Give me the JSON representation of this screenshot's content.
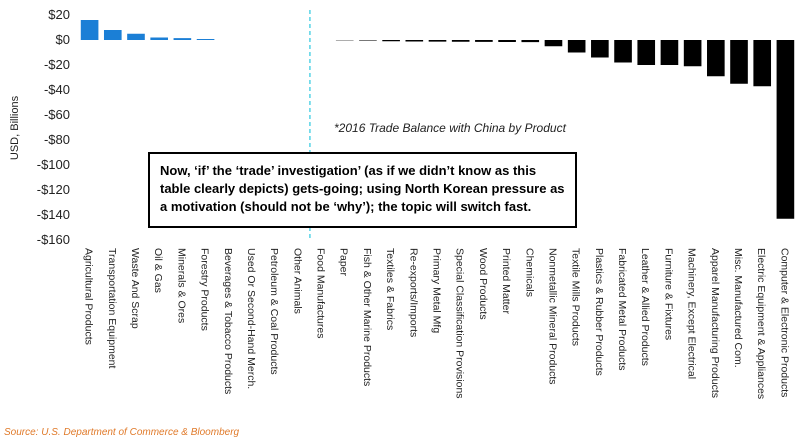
{
  "chart_data": {
    "type": "bar",
    "y_label": "USD, Billions",
    "note": "*2016 Trade Balance with China by Product",
    "annotation": "Now, ‘if’ the ‘trade’ investigation’ (as if we didn’t know as this table clearly depicts) gets-going; using North Korean pressure as a motivation (should not be ‘why’); the topic will switch fast.",
    "source": "Source: U.S. Department of Commerce & Bloomberg",
    "categories": [
      "Agricultural Products",
      "Transportation Equipment",
      "Waste And Scrap",
      "Oil & Gas",
      "Minerals & Ores",
      "Forestry Products",
      "Beverages & Tobacco Products",
      "Used Or Second-Hand Merch.",
      "Petroleum & Coal Products",
      "Other Animals",
      "Food Manufactures",
      "Paper",
      "Fish & Other Marine Products",
      "Textiles & Fabrics",
      "Re-exports/Imports",
      "Primary Metal Mfg",
      "Special Classification Provisions",
      "Wood Products",
      "Printed Matter",
      "Chemicals",
      "Nonmetallic Mineral Products",
      "Textile Mills Products",
      "Plastics & Rubber Products",
      "Fabricated Metal Products",
      "Leather & Allied Products",
      "Furniture & Fixtures",
      "Machinery, Except Electrical",
      "Apparel Manufacturing Products",
      "Misc. Manufactured Com.",
      "Electric Equipment & Appliances",
      "Computer & Electronic Products"
    ],
    "values": [
      16,
      8,
      5,
      2,
      1.5,
      0.8,
      0,
      0,
      0,
      0,
      0,
      -0.5,
      -0.8,
      -1,
      -1.2,
      -1.3,
      -1.4,
      -1.5,
      -1.6,
      -1.7,
      -5,
      -10,
      -14,
      -18,
      -20,
      -20,
      -21,
      -29,
      -35,
      -37,
      -143
    ],
    "colors": [
      "#1b7fd6",
      "#1b7fd6",
      "#1b7fd6",
      "#1b7fd6",
      "#1b7fd6",
      "#1b7fd6",
      "#000000",
      "#000000",
      "#000000",
      "#000000",
      "#000000",
      "#999999",
      "#777777",
      "#000000",
      "#000000",
      "#000000",
      "#000000",
      "#000000",
      "#000000",
      "#000000",
      "#000000",
      "#000000",
      "#000000",
      "#000000",
      "#000000",
      "#000000",
      "#000000",
      "#000000",
      "#000000",
      "#000000",
      "#000000"
    ],
    "ylim": [
      20,
      -160
    ],
    "yticks": [
      {
        "value": 20,
        "label": "$20"
      },
      {
        "value": 0,
        "label": "$0"
      },
      {
        "value": -20,
        "label": "-$20"
      },
      {
        "value": -40,
        "label": "-$40"
      },
      {
        "value": -60,
        "label": "-$60"
      },
      {
        "value": -80,
        "label": "-$80"
      },
      {
        "value": -100,
        "label": "-$100"
      },
      {
        "value": -120,
        "label": "-$120"
      },
      {
        "value": -140,
        "label": "-$140"
      },
      {
        "value": -160,
        "label": "-$160"
      }
    ],
    "grid": false
  }
}
